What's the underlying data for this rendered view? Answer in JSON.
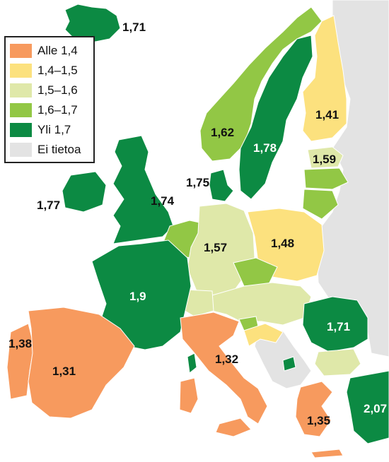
{
  "colors": {
    "alle_1_4": "#f79a5e",
    "r_1_4_1_5": "#fce17e",
    "r_1_5_1_6": "#dfe8a9",
    "r_1_6_1_7": "#92c745",
    "yli_1_7": "#0c8a43",
    "ei_tietoa": "#e3e3e3"
  },
  "legend": {
    "items": [
      {
        "label": "Alle 1,4",
        "color": "#f79a5e"
      },
      {
        "label": "1,4–1,5",
        "color": "#fce17e"
      },
      {
        "label": "1,5–1,6",
        "color": "#dfe8a9"
      },
      {
        "label": "1,6–1,7",
        "color": "#92c745"
      },
      {
        "label": "Yli 1,7",
        "color": "#0c8a43"
      },
      {
        "label": "Ei tietoa",
        "color": "#e3e3e3"
      }
    ]
  },
  "values": {
    "iceland": "1,71",
    "norway": "1,62",
    "sweden": "1,78",
    "finland": "1,41",
    "estonia": "1,59",
    "denmark": "1,75",
    "ireland": "1,77",
    "uk": "1,74",
    "germany": "1,57",
    "poland": "1,48",
    "france": "1,9",
    "romania": "1,71",
    "portugal": "1,38",
    "spain": "1,31",
    "italy": "1,32",
    "greece": "1,35",
    "turkey": "2,07"
  }
}
